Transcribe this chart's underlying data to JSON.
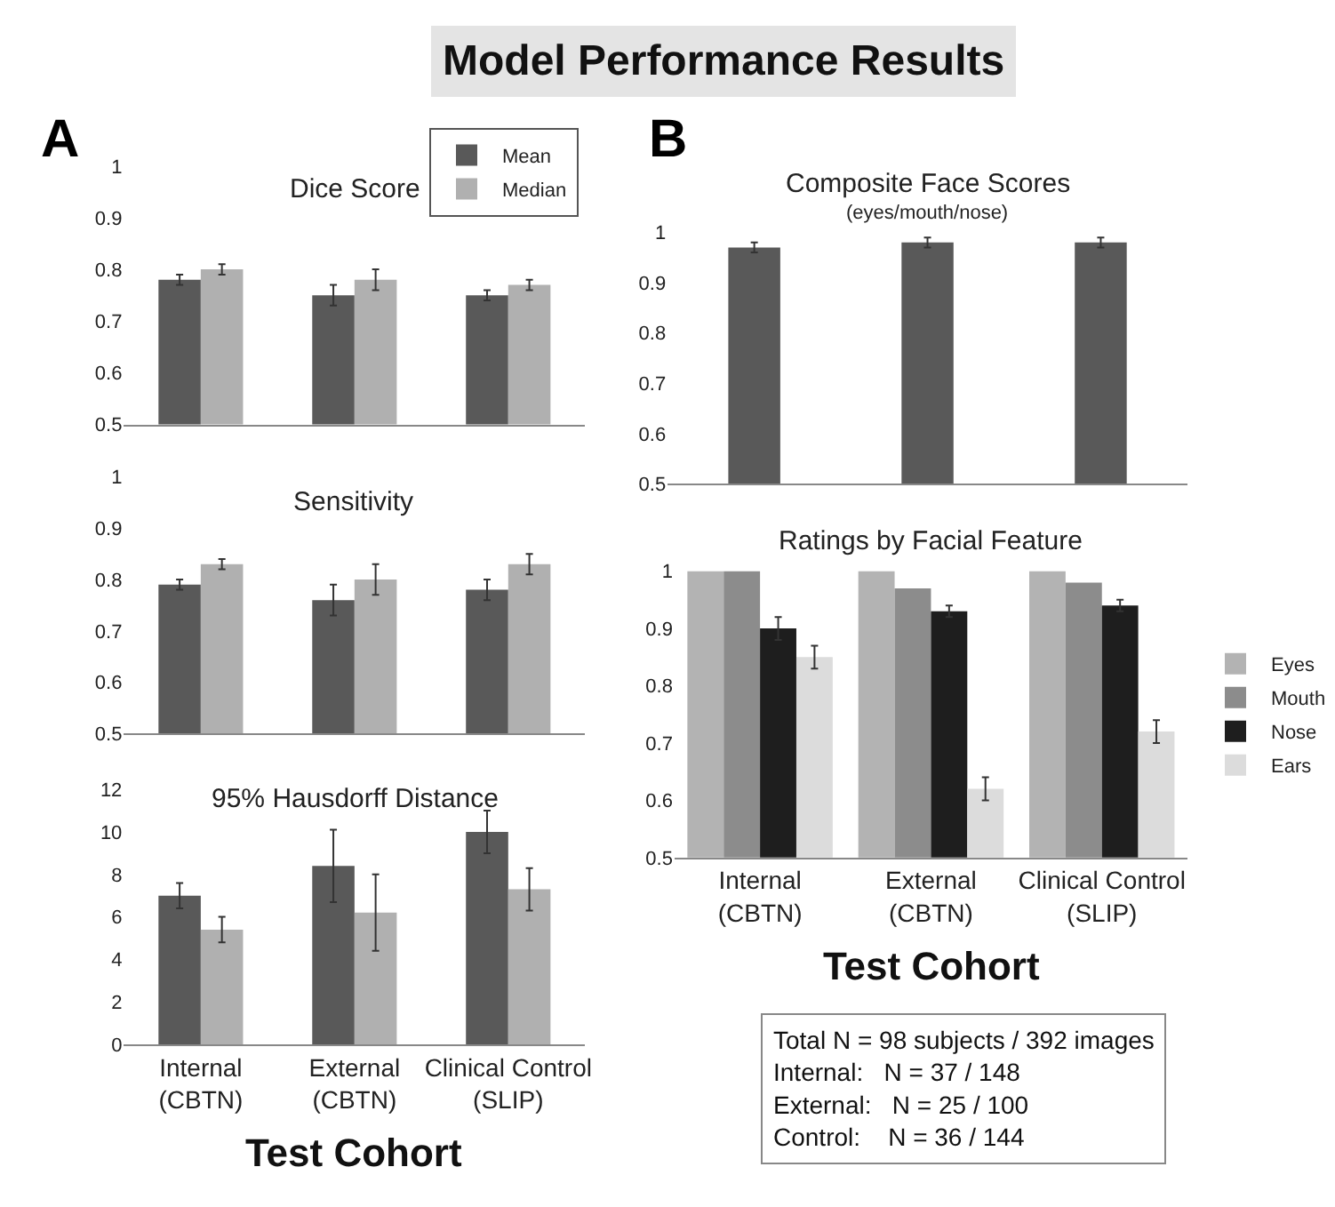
{
  "chart_data": [
    {
      "type": "bar",
      "title": "Dice Score",
      "annotations": [
        "Model Performance Results",
        "A"
      ],
      "categories": [
        null,
        null,
        null
      ],
      "series": [
        {
          "name": "Mean",
          "color": "#595959",
          "values": [
            0.78,
            0.75,
            0.75
          ],
          "errors": [
            0.01,
            0.02,
            0.01
          ]
        },
        {
          "name": "Median",
          "color": "#b0b0b0",
          "values": [
            0.8,
            0.78,
            0.77
          ],
          "errors": [
            0.01,
            0.02,
            0.01
          ]
        }
      ],
      "ylim": [
        0.5,
        1
      ],
      "yticks": [
        0.5,
        0.6,
        0.7,
        0.8,
        0.9,
        1
      ],
      "grid": false,
      "legend": "top right",
      "tick_labels": "y"
    },
    {
      "type": "bar",
      "title": "Sensitivity",
      "categories": [
        null,
        null,
        null
      ],
      "series": [
        {
          "color": "#595959",
          "values": [
            0.79,
            0.76,
            0.78
          ],
          "errors": [
            0.01,
            0.03,
            0.02
          ]
        },
        {
          "color": "#b0b0b0",
          "values": [
            0.83,
            0.8,
            0.83
          ],
          "errors": [
            0.01,
            0.03,
            0.02
          ]
        }
      ],
      "ylim": [
        0.5,
        1
      ],
      "yticks": [
        0.5,
        0.6,
        0.7,
        0.8,
        0.9,
        1
      ],
      "grid": false,
      "tick_labels": "y"
    },
    {
      "type": "bar",
      "title": "95% Hausdorff Distance",
      "xlabel": "Test Cohort",
      "categories": [
        "Internal\n(CBTN)",
        "External\n(CBTN)",
        "Clinical Control\n(SLIP)"
      ],
      "series": [
        {
          "color": "#595959",
          "values": [
            7.0,
            8.4,
            10.0
          ],
          "errors": [
            0.6,
            1.7,
            1.0
          ]
        },
        {
          "color": "#b0b0b0",
          "values": [
            5.4,
            6.2,
            7.3
          ],
          "errors": [
            0.6,
            1.8,
            1.0
          ]
        }
      ],
      "ylim": [
        0,
        12
      ],
      "yticks": [
        0,
        2,
        4,
        6,
        8,
        10,
        12
      ],
      "grid": false
    },
    {
      "type": "bar",
      "title": "Composite Face Scores",
      "subtitle": "(eyes/mouth/nose)",
      "annotations": [
        "B"
      ],
      "categories": [
        null,
        null,
        null
      ],
      "series": [
        {
          "color": "#595959",
          "values": [
            0.97,
            0.98,
            0.98
          ],
          "errors": [
            0.01,
            0.01,
            0.01
          ]
        }
      ],
      "ylim": [
        0.5,
        1
      ],
      "yticks": [
        0.5,
        0.6,
        0.7,
        0.8,
        0.9,
        1
      ],
      "grid": false,
      "tick_labels": "y"
    },
    {
      "type": "bar",
      "title": "Ratings by Facial Feature",
      "xlabel": "Test Cohort",
      "annotations": [
        "Total N = 98 subjects / 392 images\nInternal:   N = 37 / 148\nExternal:   N = 25 / 100\nControl:    N = 36 / 144"
      ],
      "categories": [
        "Internal\n(CBTN)",
        "External\n(CBTN)",
        "Clinical Control\n(SLIP)"
      ],
      "series": [
        {
          "name": "Eyes",
          "color": "#b3b3b3",
          "values": [
            1,
            1,
            1
          ]
        },
        {
          "name": "Mouth",
          "color": "#8c8c8c",
          "values": [
            1,
            0.97,
            0.98
          ]
        },
        {
          "name": "Nose",
          "color": "#1e1e1e",
          "values": [
            0.9,
            0.93,
            0.94
          ],
          "errors": [
            0.02,
            0.01,
            0.01
          ]
        },
        {
          "name": "Ears",
          "color": "#dcdcdc",
          "values": [
            0.85,
            0.62,
            0.72
          ],
          "errors": [
            0.02,
            0.02,
            0.02
          ]
        }
      ],
      "ylim": [
        0.5,
        1
      ],
      "yticks": [
        0.5,
        0.6,
        0.7,
        0.8,
        0.9,
        1
      ],
      "grid": false,
      "legend": "right"
    }
  ]
}
